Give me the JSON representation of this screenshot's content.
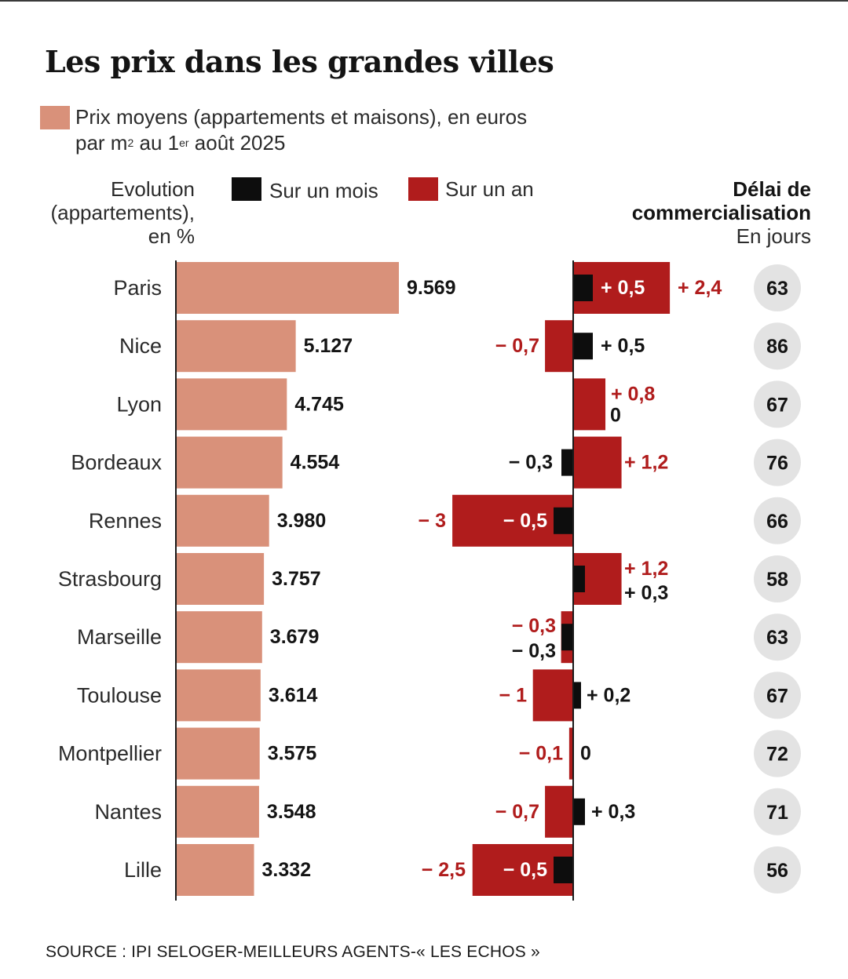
{
  "title": "Les prix dans les grandes villes",
  "legend": {
    "price_line1": "Prix moyens (appartements et maisons), en euros",
    "price_line2_a": "par m",
    "price_line2_sup1": "2",
    "price_line2_b": " au 1",
    "price_line2_sup2": "er",
    "price_line2_c": " août 2025",
    "evolution_line1": "Evolution",
    "evolution_line2": "(appartements),",
    "evolution_line3": "en %",
    "month": "Sur un mois",
    "year": "Sur un an"
  },
  "delai": {
    "line1": "Délai de",
    "line2": "commercialisation",
    "line3": "En jours"
  },
  "colors": {
    "price": "#d9917a",
    "month": "#0d0d0d",
    "year": "#b01c1c",
    "year_text": "#b01c1c",
    "circle": "#e3e3e3"
  },
  "chart_data": {
    "type": "bar",
    "categories": [
      "Paris",
      "Nice",
      "Lyon",
      "Bordeaux",
      "Rennes",
      "Strasbourg",
      "Marseille",
      "Toulouse",
      "Montpellier",
      "Nantes",
      "Lille"
    ],
    "price_labels": [
      "9.569",
      "5.127",
      "4.745",
      "4.554",
      "3.980",
      "3.757",
      "3.679",
      "3.614",
      "3.575",
      "3.548",
      "3.332"
    ],
    "price_values": [
      9569,
      5127,
      4745,
      4554,
      3980,
      3757,
      3679,
      3614,
      3575,
      3548,
      3332
    ],
    "year_labels": [
      "+2,4",
      "-0,7",
      "+0,8",
      "+1,2",
      "-3",
      "+1,2",
      "-0,3",
      "-1",
      "-0,1",
      "-0,7",
      "-2,5"
    ],
    "year_values": [
      2.4,
      -0.7,
      0.8,
      1.2,
      -3,
      1.2,
      -0.3,
      -1,
      -0.1,
      -0.7,
      -2.5
    ],
    "month_labels": [
      "+0,5",
      "+0,5",
      "0",
      "-0,3",
      "-0,5",
      "+0,3",
      "-0,3",
      "+0,2",
      "0",
      "+0,3",
      "-0,5"
    ],
    "month_values": [
      0.5,
      0.5,
      0,
      -0.3,
      -0.5,
      0.3,
      -0.3,
      0.2,
      0,
      0.3,
      -0.5
    ],
    "delai_days": [
      "63",
      "86",
      "67",
      "76",
      "66",
      "58",
      "63",
      "67",
      "72",
      "71",
      "56"
    ]
  },
  "source": "SOURCE : IPI SELOGER-MEILLEURS AGENTS-« LES ECHOS »"
}
